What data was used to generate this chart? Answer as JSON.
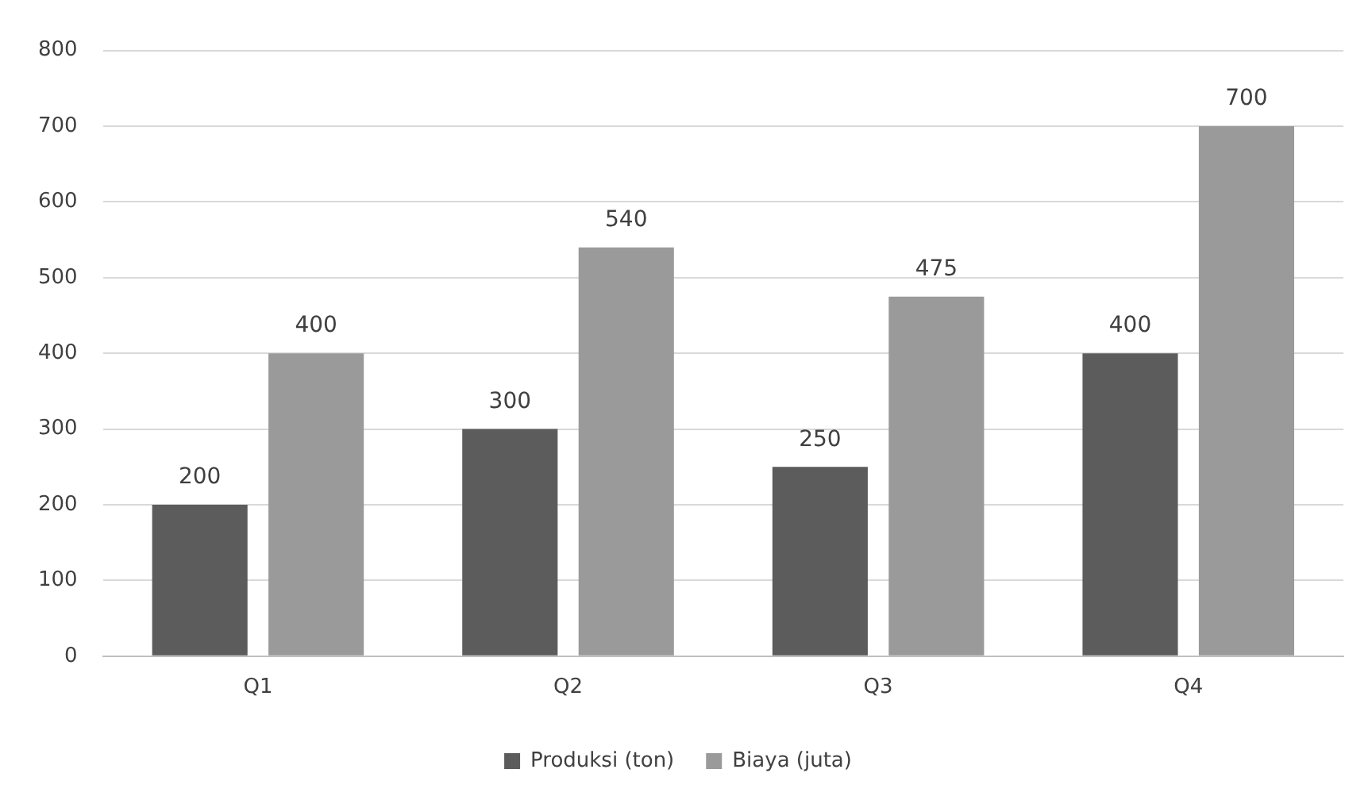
{
  "chart_data": {
    "type": "bar",
    "categories": [
      "Q1",
      "Q2",
      "Q3",
      "Q4"
    ],
    "series": [
      {
        "name": "Produksi (ton)",
        "color": "#5c5c5c",
        "values": [
          200,
          300,
          250,
          400
        ]
      },
      {
        "name": "Biaya (juta)",
        "color": "#9a9a9a",
        "values": [
          400,
          540,
          475,
          700
        ]
      }
    ],
    "ylim": [
      0,
      800
    ],
    "yticks": [
      0,
      100,
      200,
      300,
      400,
      500,
      600,
      700,
      800
    ],
    "grid": "y",
    "legend": "bottom",
    "data_labels": true
  }
}
